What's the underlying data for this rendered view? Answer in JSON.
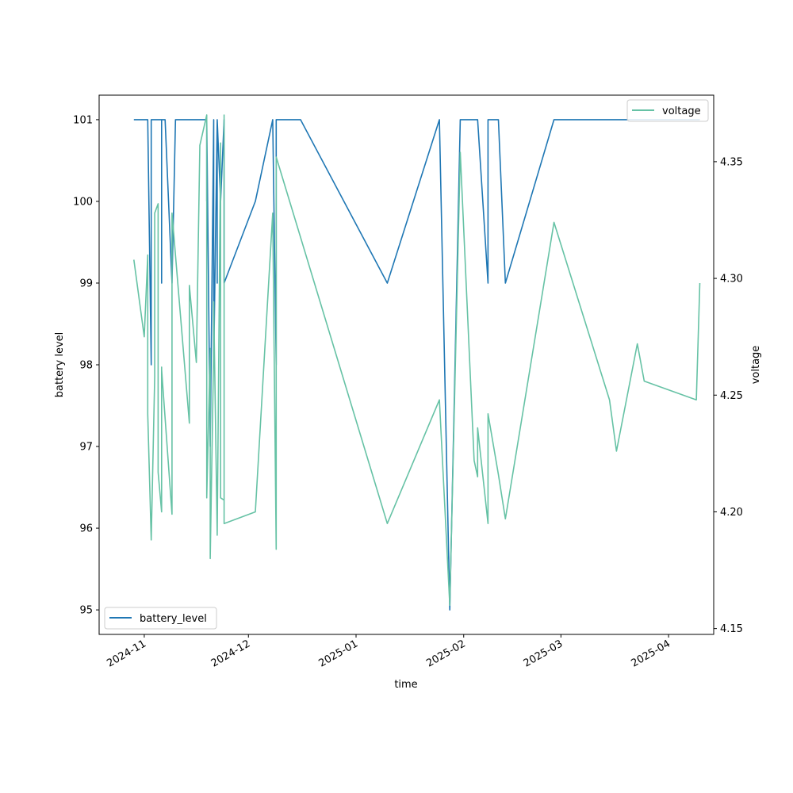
{
  "chart_data": {
    "type": "line",
    "xlabel": "time",
    "ylabel_left": "battery level",
    "ylabel_right": "voltage",
    "x_ticks": [
      "2024-11",
      "2024-12",
      "2025-01",
      "2025-02",
      "2025-03",
      "2025-04"
    ],
    "y_left_ticks": [
      95,
      96,
      97,
      98,
      99,
      100,
      101
    ],
    "y_right_ticks": [
      4.15,
      4.2,
      4.25,
      4.3,
      4.35
    ],
    "y_left_range": [
      94.7,
      101.3
    ],
    "y_right_range": [
      4.1475,
      4.3785
    ],
    "x_range": [
      "2024-10-19",
      "2025-04-14"
    ],
    "legend_left_position": "lower-left",
    "legend_right_position": "upper-right",
    "grid": false,
    "series": [
      {
        "name": "battery_level",
        "axis": "left",
        "color": "#1f77b4",
        "points": [
          [
            "2024-10-29",
            101
          ],
          [
            "2024-11-02",
            101
          ],
          [
            "2024-11-03",
            98
          ],
          [
            "2024-11-03",
            101
          ],
          [
            "2024-11-05",
            101
          ],
          [
            "2024-11-06",
            101
          ],
          [
            "2024-11-06",
            99
          ],
          [
            "2024-11-06",
            101
          ],
          [
            "2024-11-07",
            101
          ],
          [
            "2024-11-09",
            99
          ],
          [
            "2024-11-09",
            99
          ],
          [
            "2024-11-10",
            101
          ],
          [
            "2024-11-12",
            101
          ],
          [
            "2024-11-14",
            101
          ],
          [
            "2024-11-17",
            101
          ],
          [
            "2024-11-19",
            101
          ],
          [
            "2024-11-19",
            100
          ],
          [
            "2024-11-19",
            101
          ],
          [
            "2024-11-20",
            97
          ],
          [
            "2024-11-20",
            97
          ],
          [
            "2024-11-21",
            101
          ],
          [
            "2024-11-21",
            98
          ],
          [
            "2024-11-22",
            101
          ],
          [
            "2024-11-22",
            99
          ],
          [
            "2024-11-22",
            101
          ],
          [
            "2024-11-23",
            100
          ],
          [
            "2024-11-23",
            100
          ],
          [
            "2024-11-24",
            101
          ],
          [
            "2024-11-24",
            99
          ],
          [
            "2024-12-03",
            100
          ],
          [
            "2024-12-08",
            101
          ],
          [
            "2024-12-09",
            98
          ],
          [
            "2024-12-09",
            101
          ],
          [
            "2024-12-16",
            101
          ],
          [
            "2025-01-10",
            99
          ],
          [
            "2025-01-25",
            101
          ],
          [
            "2025-01-28",
            95
          ],
          [
            "2025-01-31",
            101
          ],
          [
            "2025-02-05",
            101
          ],
          [
            "2025-02-08",
            99
          ],
          [
            "2025-02-08",
            101
          ],
          [
            "2025-02-11",
            101
          ],
          [
            "2025-02-13",
            99
          ],
          [
            "2025-02-27",
            101
          ],
          [
            "2025-04-10",
            101
          ]
        ]
      },
      {
        "name": "voltage",
        "axis": "right",
        "color": "#66c2a5",
        "points": [
          [
            "2024-10-29",
            4.308
          ],
          [
            "2024-11-01",
            4.275
          ],
          [
            "2024-11-02",
            4.31
          ],
          [
            "2024-11-02",
            4.242
          ],
          [
            "2024-11-03",
            4.188
          ],
          [
            "2024-11-03",
            4.188
          ],
          [
            "2024-11-04",
            4.258
          ],
          [
            "2024-11-04",
            4.328
          ],
          [
            "2024-11-05",
            4.332
          ],
          [
            "2024-11-05",
            4.217
          ],
          [
            "2024-11-06",
            4.2
          ],
          [
            "2024-11-06",
            4.262
          ],
          [
            "2024-11-06",
            4.261
          ],
          [
            "2024-11-09",
            4.199
          ],
          [
            "2024-11-09",
            4.328
          ],
          [
            "2024-11-14",
            4.238
          ],
          [
            "2024-11-14",
            4.297
          ],
          [
            "2024-11-16",
            4.264
          ],
          [
            "2024-11-17",
            4.357
          ],
          [
            "2024-11-19",
            4.37
          ],
          [
            "2024-11-19",
            4.207
          ],
          [
            "2024-11-19",
            4.206
          ],
          [
            "2024-11-20",
            4.27
          ],
          [
            "2024-11-20",
            4.18
          ],
          [
            "2024-11-21",
            4.27
          ],
          [
            "2024-11-21",
            4.29
          ],
          [
            "2024-11-22",
            4.19
          ],
          [
            "2024-11-23",
            4.358
          ],
          [
            "2024-11-23",
            4.206
          ],
          [
            "2024-11-24",
            4.205
          ],
          [
            "2024-11-24",
            4.37
          ],
          [
            "2024-11-24",
            4.195
          ],
          [
            "2024-12-03",
            4.2
          ],
          [
            "2024-12-08",
            4.328
          ],
          [
            "2024-12-09",
            4.184
          ],
          [
            "2024-12-09",
            4.352
          ],
          [
            "2025-01-10",
            4.195
          ],
          [
            "2025-01-25",
            4.248
          ],
          [
            "2025-01-28",
            4.16
          ],
          [
            "2025-01-31",
            4.354
          ],
          [
            "2025-02-04",
            4.222
          ],
          [
            "2025-02-05",
            4.215
          ],
          [
            "2025-02-05",
            4.236
          ],
          [
            "2025-02-08",
            4.195
          ],
          [
            "2025-02-08",
            4.242
          ],
          [
            "2025-02-11",
            4.216
          ],
          [
            "2025-02-13",
            4.197
          ],
          [
            "2025-02-27",
            4.324
          ],
          [
            "2025-03-15",
            4.248
          ],
          [
            "2025-03-17",
            4.226
          ],
          [
            "2025-03-23",
            4.272
          ],
          [
            "2025-03-25",
            4.256
          ],
          [
            "2025-04-09",
            4.248
          ],
          [
            "2025-04-10",
            4.298
          ]
        ]
      }
    ]
  }
}
